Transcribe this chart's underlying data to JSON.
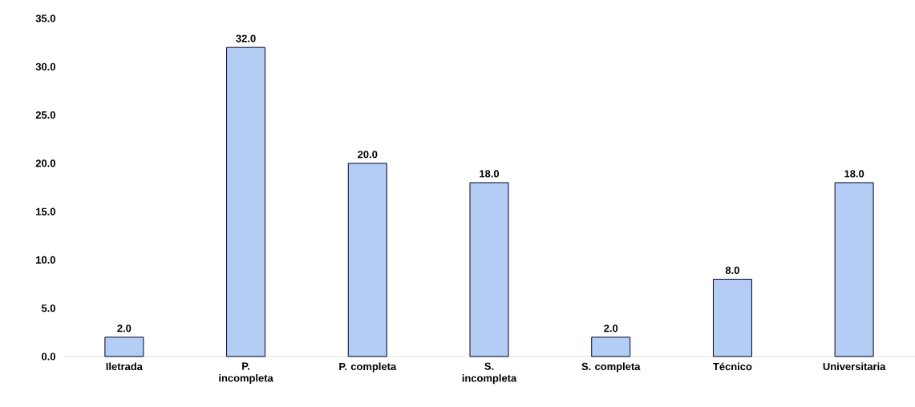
{
  "chart_data": {
    "type": "bar",
    "categories": [
      "Iletrada",
      "P. incompleta",
      "P. completa",
      "S. incompleta",
      "S. completa",
      "Técnico",
      "Universitaria"
    ],
    "values": [
      2.0,
      32.0,
      20.0,
      18.0,
      2.0,
      8.0,
      18.0
    ],
    "value_labels": [
      "2.0",
      "32.0",
      "20.0",
      "18.0",
      "2.0",
      "8.0",
      "18.0"
    ],
    "color": "#b4cdf5",
    "ylim": [
      0,
      35
    ],
    "yticks": [
      {
        "value": 0,
        "label": "0.0"
      },
      {
        "value": 5,
        "label": "5.0"
      },
      {
        "value": 10,
        "label": "10.0"
      },
      {
        "value": 15,
        "label": "15.0"
      },
      {
        "value": 20,
        "label": "20.0"
      },
      {
        "value": 25,
        "label": "25.0"
      },
      {
        "value": 30,
        "label": "30.0"
      },
      {
        "value": 35,
        "label": "35.0"
      }
    ]
  }
}
